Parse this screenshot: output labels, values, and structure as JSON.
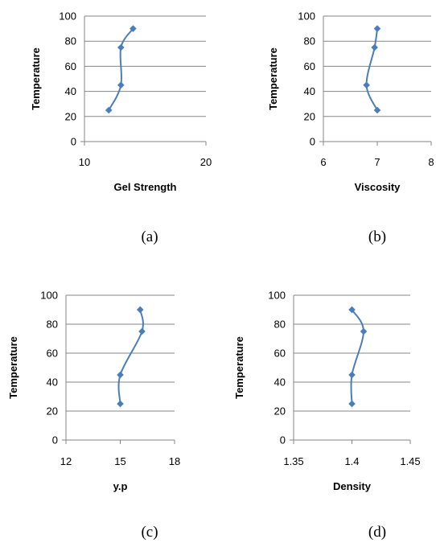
{
  "chart_data": [
    {
      "type": "line",
      "caption": "(a)",
      "xlabel": "Gel Strength",
      "ylabel": "Temperature",
      "xlim": [
        10,
        20
      ],
      "ylim": [
        0,
        100
      ],
      "xticks": [
        "10",
        "20"
      ],
      "yticks": [
        "0",
        "20",
        "40",
        "60",
        "80",
        "100"
      ],
      "grid": "horizontal",
      "color": "#4a7ebb",
      "points": [
        {
          "x": 12,
          "y": 25
        },
        {
          "x": 13,
          "y": 45
        },
        {
          "x": 13,
          "y": 75
        },
        {
          "x": 14,
          "y": 90
        }
      ]
    },
    {
      "type": "line",
      "caption": "(b)",
      "xlabel": "Viscosity",
      "ylabel": "Temperature",
      "xlim": [
        6,
        8
      ],
      "ylim": [
        0,
        100
      ],
      "xticks": [
        "6",
        "7",
        "8"
      ],
      "yticks": [
        "0",
        "20",
        "40",
        "60",
        "80",
        "100"
      ],
      "grid": "horizontal",
      "color": "#4a7ebb",
      "points": [
        {
          "x": 7.0,
          "y": 25
        },
        {
          "x": 6.8,
          "y": 45
        },
        {
          "x": 6.95,
          "y": 75
        },
        {
          "x": 7.0,
          "y": 90
        }
      ]
    },
    {
      "type": "line",
      "caption": "(c)",
      "xlabel": "y.p",
      "ylabel": "Temperature",
      "xlim": [
        12,
        18
      ],
      "ylim": [
        0,
        100
      ],
      "xticks": [
        "12",
        "15",
        "18"
      ],
      "yticks": [
        "0",
        "20",
        "40",
        "60",
        "80",
        "100"
      ],
      "grid": "horizontal",
      "color": "#4a7ebb",
      "points": [
        {
          "x": 15.0,
          "y": 25
        },
        {
          "x": 15.0,
          "y": 45
        },
        {
          "x": 16.2,
          "y": 75
        },
        {
          "x": 16.1,
          "y": 90
        }
      ]
    },
    {
      "type": "line",
      "caption": "(d)",
      "xlabel": "Density",
      "ylabel": "Temperature",
      "xlim": [
        1.35,
        1.45
      ],
      "ylim": [
        0,
        100
      ],
      "xticks": [
        "1.35",
        "1.4",
        "1.45"
      ],
      "yticks": [
        "0",
        "20",
        "40",
        "60",
        "80",
        "100"
      ],
      "grid": "horizontal",
      "color": "#4a7ebb",
      "points": [
        {
          "x": 1.4,
          "y": 25
        },
        {
          "x": 1.4,
          "y": 45
        },
        {
          "x": 1.41,
          "y": 75
        },
        {
          "x": 1.4,
          "y": 90
        }
      ]
    }
  ]
}
